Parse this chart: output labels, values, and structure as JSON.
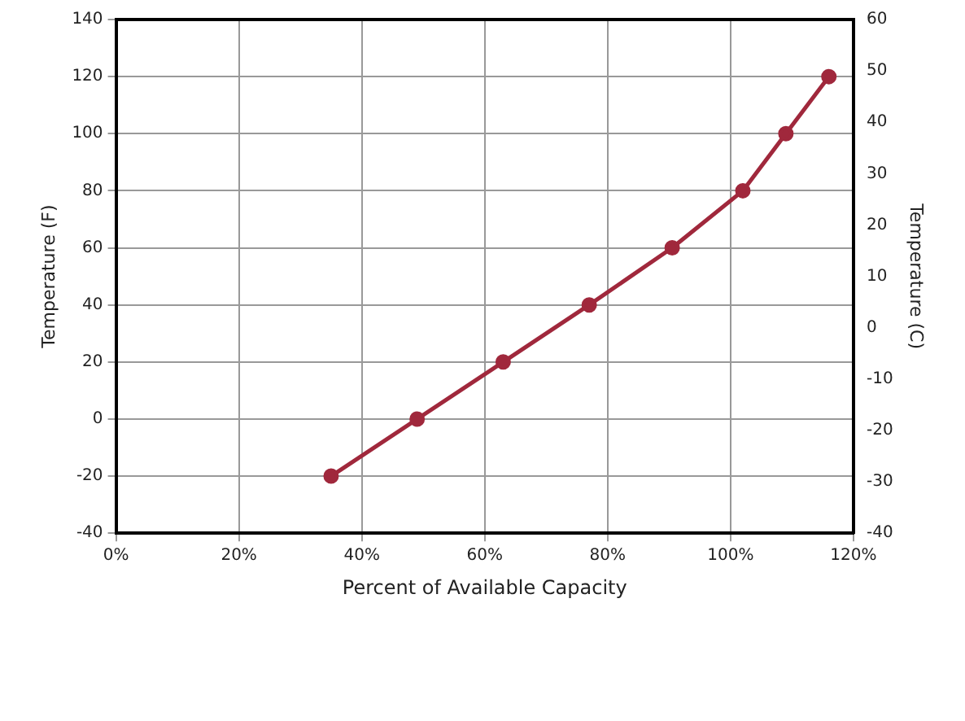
{
  "chart_data": {
    "type": "line",
    "xlabel": "Percent of Available Capacity",
    "ylabel": "Temperature (F)",
    "y2label": "Temperature (C)",
    "x": [
      35,
      49,
      63,
      77,
      90.5,
      102,
      109,
      116
    ],
    "series": [
      {
        "color": "#a0283c",
        "values": [
          -20,
          0,
          20,
          40,
          60,
          80,
          100,
          120
        ]
      }
    ],
    "xlim": [
      0,
      120
    ],
    "xticks": [
      {
        "value": 0,
        "label": "0%"
      },
      {
        "value": 20,
        "label": "20%"
      },
      {
        "value": 40,
        "label": "40%"
      },
      {
        "value": 60,
        "label": "60%"
      },
      {
        "value": 80,
        "label": "80%"
      },
      {
        "value": 100,
        "label": "100%"
      },
      {
        "value": 120,
        "label": "120%"
      }
    ],
    "ylim": [
      -40,
      140
    ],
    "yticks": [
      -40,
      -20,
      0,
      20,
      40,
      60,
      80,
      100,
      120,
      140
    ],
    "y2lim": [
      -40,
      60
    ],
    "y2ticks": [
      -40,
      -30,
      -20,
      -10,
      0,
      10,
      20,
      30,
      40,
      50,
      60
    ],
    "grid": true,
    "marker": "circle",
    "line_style": "solid",
    "legend": false
  }
}
